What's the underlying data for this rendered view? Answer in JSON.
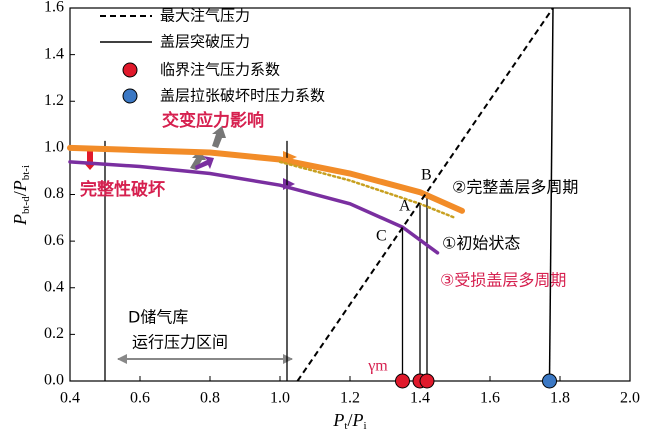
{
  "chart_data": {
    "type": "line",
    "xlabel": [
      "P",
      "t",
      "/",
      "P",
      "i"
    ],
    "ylabel": [
      "P",
      "bt-d",
      "/",
      "P",
      "bt-i"
    ],
    "xlim": [
      0.4,
      2.0
    ],
    "ylim": [
      0,
      1.6
    ],
    "xticks": [
      0.4,
      0.6,
      0.8,
      {
        "value": 1,
        "label": "1.0"
      },
      1.2,
      1.4,
      1.6,
      1.8,
      {
        "value": 2,
        "label": "2.0"
      }
    ],
    "yticks": [
      {
        "value": 0,
        "label": "0.0"
      },
      0.2,
      0.4,
      0.6,
      0.8,
      {
        "value": 1,
        "label": "1.0"
      },
      1.2,
      1.4,
      1.6
    ],
    "series": [
      {
        "name": "最大注气压力",
        "kind": "dashed",
        "color": "#000000",
        "x": [
          1.05,
          1.78
        ],
        "values": [
          0,
          1.6
        ]
      },
      {
        "name": "盖层突破压力",
        "kind": "solid",
        "color": "#000000",
        "x": [
          1.78,
          1.77
        ],
        "values": [
          1.6,
          0
        ]
      },
      {
        "name": "临界注气压力系数",
        "kind": "marker",
        "color": "#e0192b",
        "x": [
          1.35,
          1.4,
          1.42
        ],
        "values": [
          0,
          0,
          0
        ]
      },
      {
        "name": "盖层拉张破坏时压力系数",
        "kind": "marker",
        "color": "#3b78c4",
        "x": [
          1.77
        ],
        "values": [
          0
        ]
      }
    ],
    "curves": [
      {
        "label": "②完整盖层多周期",
        "label_color": "#000000",
        "color": "#f28c28",
        "style": "thick",
        "x": [
          0.4,
          0.6,
          0.8,
          1.0,
          1.2,
          1.4,
          1.52
        ],
        "values": [
          1.0,
          0.99,
          0.98,
          0.95,
          0.89,
          0.81,
          0.73
        ]
      },
      {
        "label": "③受损盖层多周期",
        "label_color": "#d6204f",
        "color": "#c8a020",
        "style": "dotted",
        "x": [
          1.0,
          1.2,
          1.4,
          1.5
        ],
        "values": [
          0.94,
          0.86,
          0.76,
          0.7
        ]
      },
      {
        "label": "①初始状态",
        "label_color": "#000000",
        "color": "#7a2fa0",
        "style": "medium",
        "x": [
          0.4,
          0.6,
          0.8,
          1.0,
          1.2,
          1.35,
          1.45
        ],
        "values": [
          0.94,
          0.92,
          0.89,
          0.84,
          0.76,
          0.66,
          0.55
        ]
      }
    ],
    "drop_lines": [
      {
        "x": 0.5,
        "y": 1.03
      },
      {
        "x": 1.02,
        "y": 1.03
      },
      {
        "x": 1.35,
        "y": 0.66
      },
      {
        "x": 1.4,
        "y": 0.76
      },
      {
        "x": 1.42,
        "y": 0.81
      }
    ],
    "annotations": [
      "交变应力影响",
      "完整性破坏",
      "D储气库",
      "运行压力区间",
      "A",
      "B",
      "C",
      "γm"
    ]
  }
}
